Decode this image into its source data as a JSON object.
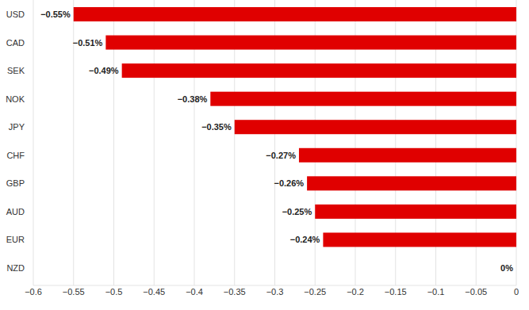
{
  "chart_data": {
    "type": "bar",
    "orientation": "horizontal",
    "categories": [
      "USD",
      "CAD",
      "SEK",
      "NOK",
      "JPY",
      "CHF",
      "GBP",
      "AUD",
      "EUR",
      "NZD"
    ],
    "values": [
      -0.55,
      -0.51,
      -0.49,
      -0.38,
      -0.35,
      -0.27,
      -0.26,
      -0.25,
      -0.24,
      0
    ],
    "value_labels": [
      "−0.55%",
      "−0.51%",
      "−0.49%",
      "−0.38%",
      "−0.35%",
      "−0.27%",
      "−0.26%",
      "−0.25%",
      "−0.24%",
      "0%"
    ],
    "color": "#e00000",
    "xlim": [
      -0.6,
      0
    ],
    "xticks": [
      {
        "value": -0.6,
        "label": "−0.6"
      },
      {
        "value": -0.55,
        "label": "−0.55"
      },
      {
        "value": -0.5,
        "label": "−0.5"
      },
      {
        "value": -0.45,
        "label": "−0.45"
      },
      {
        "value": -0.4,
        "label": "−0.4"
      },
      {
        "value": -0.35,
        "label": "−0.35"
      },
      {
        "value": -0.3,
        "label": "−0.3"
      },
      {
        "value": -0.25,
        "label": "−0.25"
      },
      {
        "value": -0.2,
        "label": "−0.2"
      },
      {
        "value": -0.15,
        "label": "−0.15"
      },
      {
        "value": -0.1,
        "label": "−0.1"
      },
      {
        "value": -0.05,
        "label": "−0.05"
      },
      0
    ],
    "grid": true,
    "data_labels": true
  }
}
